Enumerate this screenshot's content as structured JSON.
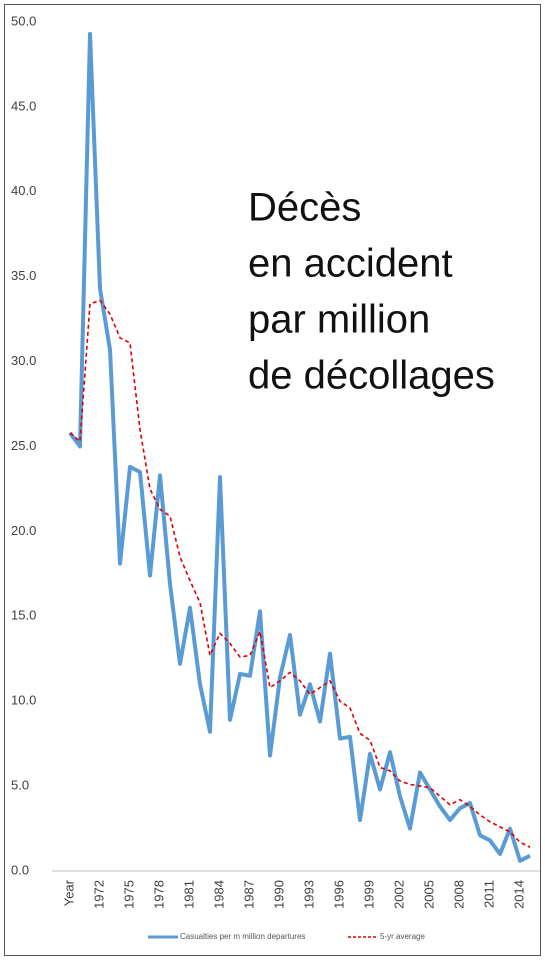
{
  "chart_data": {
    "type": "line",
    "annotation": [
      "Décès",
      "en accident",
      "par million",
      "de décollages"
    ],
    "categories": [
      "Year",
      null,
      null,
      "1972",
      null,
      null,
      "1975",
      null,
      null,
      "1978",
      null,
      null,
      "1981",
      null,
      null,
      "1984",
      null,
      null,
      "1987",
      null,
      null,
      "1990",
      null,
      null,
      "1993",
      null,
      null,
      "1996",
      null,
      null,
      "1999",
      null,
      null,
      "2002",
      null,
      null,
      "2005",
      null,
      null,
      "2008",
      null,
      null,
      "2011",
      null,
      null,
      "2014",
      null
    ],
    "series": [
      {
        "name": "Casualties per m million departures",
        "color": "#5b9bd5",
        "dashed": false,
        "values": [
          25.8,
          25.0,
          49.3,
          34.3,
          30.7,
          18.1,
          23.8,
          23.5,
          17.4,
          23.3,
          16.9,
          12.2,
          15.5,
          11.0,
          8.2,
          23.2,
          8.9,
          11.6,
          11.5,
          15.3,
          6.8,
          11.4,
          13.9,
          9.2,
          11.0,
          8.8,
          12.8,
          7.8,
          7.9,
          3.0,
          6.9,
          4.8,
          7.0,
          4.4,
          2.5,
          5.8,
          4.8,
          3.8,
          3.0,
          3.7,
          4.0,
          2.1,
          1.8,
          1.0,
          2.5,
          0.6,
          0.9
        ]
      },
      {
        "name": "5-yr average",
        "color": "#e00000",
        "dashed": true,
        "values": [
          25.8,
          25.3,
          33.4,
          33.6,
          32.8,
          31.4,
          31.1,
          26.0,
          22.5,
          21.3,
          20.9,
          18.5,
          17.1,
          15.8,
          12.7,
          14.0,
          13.4,
          12.6,
          12.7,
          14.1,
          10.8,
          11.2,
          11.7,
          11.2,
          10.4,
          10.8,
          11.2,
          10.0,
          9.6,
          8.1,
          7.7,
          6.1,
          5.9,
          5.3,
          5.1,
          5.0,
          4.9,
          4.4,
          3.9,
          4.2,
          3.8,
          3.3,
          2.9,
          2.6,
          2.3,
          1.7,
          1.4
        ]
      }
    ],
    "ylim": [
      0,
      50
    ],
    "yticks": [
      {
        "value": 0,
        "label": "0.0"
      },
      {
        "value": 5,
        "label": "5.0"
      },
      {
        "value": 10,
        "label": "10.0"
      },
      {
        "value": 15,
        "label": "15.0"
      },
      {
        "value": 20,
        "label": "20.0"
      },
      {
        "value": 25,
        "label": "25.0"
      },
      {
        "value": 30,
        "label": "30.0"
      },
      {
        "value": 35,
        "label": "35.0"
      },
      {
        "value": 40,
        "label": "40.0"
      },
      {
        "value": 45,
        "label": "45.0"
      },
      {
        "value": 50,
        "label": "50.0"
      }
    ],
    "grid": false,
    "legend": "bottom"
  }
}
